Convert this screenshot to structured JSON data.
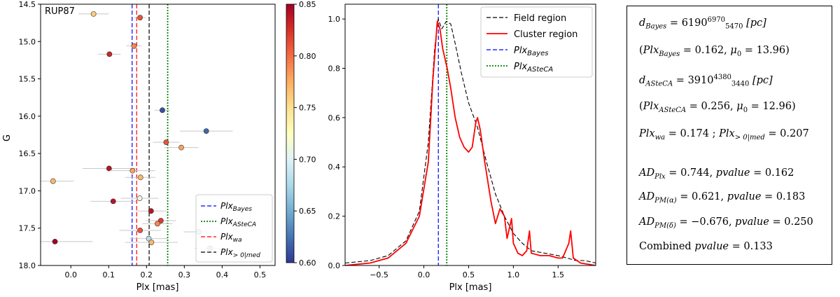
{
  "chart_data": [
    {
      "type": "scatter",
      "title": "RUP87",
      "xlabel": "Plx [mas]",
      "ylabel": "G",
      "xlim": [
        -0.08,
        0.54
      ],
      "ylim": [
        18.0,
        14.5
      ],
      "xticks": [
        0.0,
        0.1,
        0.2,
        0.3,
        0.4,
        0.5
      ],
      "yticks": [
        14.5,
        15.0,
        15.5,
        16.0,
        16.5,
        17.0,
        17.5,
        18.0
      ],
      "colorbar": {
        "min": 0.6,
        "max": 0.85,
        "ticks": [
          0.6,
          0.65,
          0.7,
          0.75,
          0.8,
          0.85
        ]
      },
      "points": [
        {
          "plx": 0.06,
          "g": 14.63,
          "err": 0.04,
          "p": 0.76
        },
        {
          "plx": 0.183,
          "g": 14.68,
          "err": 0.015,
          "p": 0.81
        },
        {
          "plx": 0.167,
          "g": 15.06,
          "err": 0.02,
          "p": 0.79
        },
        {
          "plx": 0.102,
          "g": 15.17,
          "err": 0.03,
          "p": 0.83
        },
        {
          "plx": 0.242,
          "g": 15.92,
          "err": 0.02,
          "p": 0.61
        },
        {
          "plx": 0.358,
          "g": 16.2,
          "err": 0.07,
          "p": 0.62
        },
        {
          "plx": 0.252,
          "g": 16.35,
          "err": 0.035,
          "p": 0.81
        },
        {
          "plx": 0.292,
          "g": 16.42,
          "err": 0.045,
          "p": 0.78
        },
        {
          "plx": 0.101,
          "g": 16.7,
          "err": 0.07,
          "p": 0.84
        },
        {
          "plx": 0.163,
          "g": 16.73,
          "err": 0.06,
          "p": 0.78
        },
        {
          "plx": -0.047,
          "g": 16.87,
          "err": 0.055,
          "p": 0.77
        },
        {
          "plx": 0.184,
          "g": 16.82,
          "err": 0.04,
          "p": 0.77
        },
        {
          "plx": 0.112,
          "g": 17.14,
          "err": 0.06,
          "p": 0.84
        },
        {
          "plx": 0.182,
          "g": 17.1,
          "err": 0.05,
          "p": 0.71
        },
        {
          "plx": 0.212,
          "g": 17.27,
          "err": 0.04,
          "p": 0.84
        },
        {
          "plx": 0.238,
          "g": 17.4,
          "err": 0.04,
          "p": 0.82
        },
        {
          "plx": 0.229,
          "g": 17.44,
          "err": 0.04,
          "p": 0.79
        },
        {
          "plx": 0.183,
          "g": 17.53,
          "err": 0.055,
          "p": 0.81
        },
        {
          "plx": 0.206,
          "g": 17.64,
          "err": 0.05,
          "p": 0.68
        },
        {
          "plx": 0.213,
          "g": 17.69,
          "err": 0.07,
          "p": 0.77
        },
        {
          "plx": -0.042,
          "g": 17.68,
          "err": 0.1,
          "p": 0.85
        },
        {
          "plx": 0.338,
          "g": 17.55,
          "err": 0.04,
          "p": 0.67
        },
        {
          "plx": 0.368,
          "g": 17.77,
          "err": 0.04,
          "p": 0.66
        }
      ],
      "vlines": [
        {
          "name": "Plx_Bayes",
          "x": 0.162,
          "color": "#0000ff",
          "style": "dashed"
        },
        {
          "name": "Plx_ASteCA",
          "x": 0.256,
          "color": "#008000",
          "style": "dotted"
        },
        {
          "name": "Plx_wa",
          "x": 0.174,
          "color": "#ff0000",
          "style": "dashed"
        },
        {
          "name": "Plx_>0|med",
          "x": 0.207,
          "color": "#000000",
          "style": "dashed"
        }
      ],
      "legend": {
        "placement": "lower-right",
        "entries": [
          {
            "key": "bayes",
            "base": "Plx",
            "sub": "Bayes",
            "color": "#0000ff",
            "style": "dashed"
          },
          {
            "key": "asteca",
            "base": "Plx",
            "sub": "ASteCA",
            "color": "#008000",
            "style": "dotted"
          },
          {
            "key": "wa",
            "base": "Plx",
            "sub": "wa",
            "color": "#ff0000",
            "style": "dashed"
          },
          {
            "key": "med",
            "base": "Plx",
            "sub": "> 0|med",
            "color": "#000000",
            "style": "dashed"
          }
        ]
      }
    },
    {
      "type": "line",
      "xlabel": "Plx [mas]",
      "ylabel": "",
      "xlim": [
        -0.88,
        1.92
      ],
      "ylim": [
        0.0,
        1.06
      ],
      "xticks": [
        -0.5,
        0.0,
        0.5,
        1.0,
        1.5
      ],
      "yticks": [
        0.0,
        0.2,
        0.4,
        0.6,
        0.8,
        1.0
      ],
      "series": [
        {
          "name": "Field region",
          "color": "#000000",
          "style": "dashed",
          "points": [
            [
              -0.88,
              0.01
            ],
            [
              -0.6,
              0.02
            ],
            [
              -0.4,
              0.04
            ],
            [
              -0.2,
              0.1
            ],
            [
              -0.05,
              0.22
            ],
            [
              0.05,
              0.5
            ],
            [
              0.12,
              0.88
            ],
            [
              0.16,
              1.0
            ],
            [
              0.2,
              0.96
            ],
            [
              0.25,
              0.99
            ],
            [
              0.3,
              0.98
            ],
            [
              0.35,
              0.9
            ],
            [
              0.42,
              0.78
            ],
            [
              0.5,
              0.66
            ],
            [
              0.6,
              0.56
            ],
            [
              0.7,
              0.42
            ],
            [
              0.8,
              0.29
            ],
            [
              0.9,
              0.2
            ],
            [
              1.0,
              0.13
            ],
            [
              1.1,
              0.09
            ],
            [
              1.2,
              0.06
            ],
            [
              1.35,
              0.05
            ],
            [
              1.5,
              0.04
            ],
            [
              1.6,
              0.03
            ],
            [
              1.7,
              0.02
            ],
            [
              1.8,
              0.02
            ],
            [
              1.92,
              0.01
            ]
          ]
        },
        {
          "name": "Cluster region",
          "color": "#ff0000",
          "style": "solid",
          "points": [
            [
              -0.88,
              0.0
            ],
            [
              -0.6,
              0.01
            ],
            [
              -0.4,
              0.03
            ],
            [
              -0.2,
              0.09
            ],
            [
              -0.05,
              0.2
            ],
            [
              0.05,
              0.42
            ],
            [
              0.1,
              0.75
            ],
            [
              0.15,
              0.99
            ],
            [
              0.18,
              0.96
            ],
            [
              0.21,
              0.88
            ],
            [
              0.26,
              0.8
            ],
            [
              0.3,
              0.72
            ],
            [
              0.35,
              0.6
            ],
            [
              0.4,
              0.52
            ],
            [
              0.45,
              0.48
            ],
            [
              0.5,
              0.46
            ],
            [
              0.54,
              0.48
            ],
            [
              0.58,
              0.58
            ],
            [
              0.6,
              0.6
            ],
            [
              0.63,
              0.55
            ],
            [
              0.68,
              0.42
            ],
            [
              0.75,
              0.26
            ],
            [
              0.8,
              0.17
            ],
            [
              0.85,
              0.23
            ],
            [
              0.9,
              0.2
            ],
            [
              0.93,
              0.11
            ],
            [
              0.98,
              0.19
            ],
            [
              1.0,
              0.09
            ],
            [
              1.05,
              0.05
            ],
            [
              1.1,
              0.04
            ],
            [
              1.15,
              0.06
            ],
            [
              1.18,
              0.14
            ],
            [
              1.2,
              0.05
            ],
            [
              1.3,
              0.04
            ],
            [
              1.4,
              0.04
            ],
            [
              1.5,
              0.03
            ],
            [
              1.55,
              0.03
            ],
            [
              1.62,
              0.09
            ],
            [
              1.64,
              0.14
            ],
            [
              1.67,
              0.03
            ],
            [
              1.75,
              0.01
            ],
            [
              1.92,
              0.0
            ]
          ]
        }
      ],
      "vlines": [
        {
          "name": "Plx_Bayes",
          "x": 0.162,
          "color": "#0000ff",
          "style": "dashed"
        },
        {
          "name": "Plx_ASteCA",
          "x": 0.256,
          "color": "#008000",
          "style": "dotted"
        }
      ],
      "legend": {
        "placement": "top-right",
        "entries": [
          {
            "key": "field",
            "label": "Field region",
            "color": "#000000",
            "style": "dashed"
          },
          {
            "key": "cluster",
            "label": "Cluster region",
            "color": "#ff0000",
            "style": "solid"
          },
          {
            "key": "bayes",
            "base": "Plx",
            "sub": "Bayes",
            "color": "#0000ff",
            "style": "dashed"
          },
          {
            "key": "asteca",
            "base": "Plx",
            "sub": "ASteCA",
            "color": "#008000",
            "style": "dotted"
          }
        ]
      }
    }
  ],
  "stats": {
    "d_bayes": {
      "base": "d",
      "sub": "Bayes",
      "value": "6190",
      "upper": "6970",
      "lower": "5470",
      "unit": "[pc]"
    },
    "plx_bayes": {
      "base": "Plx",
      "sub": "Bayes",
      "value": "0.162",
      "mu_label": "μ",
      "mu_sub": "0",
      "mu_value": "13.96"
    },
    "d_asteca": {
      "base": "d",
      "sub": "ASteCA",
      "value": "3910",
      "upper": "4380",
      "lower": "3440",
      "unit": "[pc]"
    },
    "plx_asteca": {
      "base": "Plx",
      "sub": "ASteCA",
      "value": "0.256",
      "mu_label": "μ",
      "mu_sub": "0",
      "mu_value": "12.96"
    },
    "plx_wa": {
      "base": "Plx",
      "sub": "wa",
      "value": "0.174"
    },
    "plx_med": {
      "base": "Plx",
      "sub": "> 0|med",
      "value": "0.207"
    },
    "ad_plx": {
      "base": "AD",
      "sub": "Plx",
      "value": "0.744",
      "pvalue_label": "pvalue",
      "pvalue": "0.162"
    },
    "ad_pm_alpha": {
      "base": "AD",
      "sub": "PM(α)",
      "value": "0.621",
      "pvalue_label": "pvalue",
      "pvalue": "0.183"
    },
    "ad_pm_delta": {
      "base": "AD",
      "sub": "PM(δ)",
      "value": "−0.676",
      "pvalue_label": "pvalue",
      "pvalue": "0.250"
    },
    "combined": {
      "label": "Combined",
      "pvalue_label": "pvalue",
      "pvalue": "0.133"
    }
  }
}
